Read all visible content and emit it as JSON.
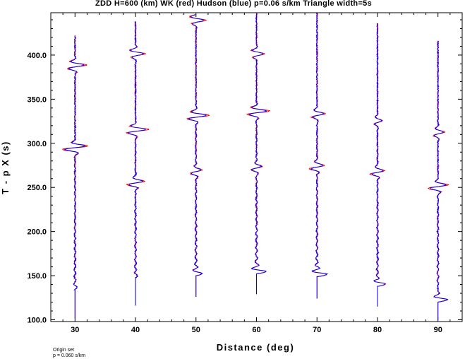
{
  "chart_data": {
    "type": "line",
    "title": "ZDD H=600 (km) WK (red) Hudson (blue) p=0.06 s/km Triangle width=5s",
    "xlabel": "Distance (deg)",
    "ylabel": "T - p X (s)",
    "xlim": [
      26,
      94
    ],
    "ylim": [
      98,
      448
    ],
    "x_ticks": [
      30,
      40,
      50,
      60,
      70,
      80,
      90
    ],
    "x_tick_labels": [
      "30",
      "40",
      "50",
      "60",
      "70",
      "80",
      "90"
    ],
    "y_ticks": [
      100,
      150,
      200,
      250,
      300,
      350,
      400
    ],
    "y_tick_labels": [
      "100.0",
      "150.0",
      "200.0",
      "250.0",
      "300.0",
      "350.0",
      "400.0"
    ],
    "series": [
      {
        "name": "WK",
        "color": "#ff0000"
      },
      {
        "name": "Hudson",
        "color": "#0000ff"
      }
    ],
    "traces": [
      {
        "distance": 30,
        "start": 102,
        "onset": 134,
        "end": 422,
        "onset_amp": 0.6,
        "arrivals": [
          {
            "t": 295,
            "amp": 4.5
          },
          {
            "t": 388,
            "amp": 3.5
          }
        ]
      },
      {
        "distance": 40,
        "start": 116,
        "onset": 148,
        "end": 438,
        "onset_amp": 0.8,
        "arrivals": [
          {
            "t": 255,
            "amp": 3.0
          },
          {
            "t": 315,
            "amp": 4.0
          },
          {
            "t": 402,
            "amp": 3.0
          }
        ]
      },
      {
        "distance": 50,
        "start": 126,
        "onset": 150,
        "end": 446,
        "onset_amp": 2.5,
        "arrivals": [
          {
            "t": 268,
            "amp": 2.0
          },
          {
            "t": 331,
            "amp": 4.0
          },
          {
            "t": 440,
            "amp": 3.0
          }
        ]
      },
      {
        "distance": 60,
        "start": 129,
        "onset": 152,
        "end": 448,
        "onset_amp": 4.0,
        "arrivals": [
          {
            "t": 272,
            "amp": 2.0
          },
          {
            "t": 336,
            "amp": 4.0
          },
          {
            "t": 402,
            "amp": 2.5
          }
        ]
      },
      {
        "distance": 70,
        "start": 124,
        "onset": 149,
        "end": 448,
        "onset_amp": 4.5,
        "arrivals": [
          {
            "t": 273,
            "amp": 2.5
          },
          {
            "t": 333,
            "amp": 2.5
          }
        ]
      },
      {
        "distance": 80,
        "start": 115,
        "onset": 138,
        "end": 436,
        "onset_amp": 4.0,
        "arrivals": [
          {
            "t": 267,
            "amp": 2.5
          },
          {
            "t": 325,
            "amp": 1.5
          }
        ]
      },
      {
        "distance": 90,
        "start": 100,
        "onset": 120,
        "end": 416,
        "onset_amp": 4.5,
        "arrivals": [
          {
            "t": 251,
            "amp": 3.5
          },
          {
            "t": 312,
            "amp": 2.0
          }
        ]
      }
    ]
  },
  "footnote": {
    "line1": "Origin set",
    "line2": "p = 0.060 s/km"
  }
}
